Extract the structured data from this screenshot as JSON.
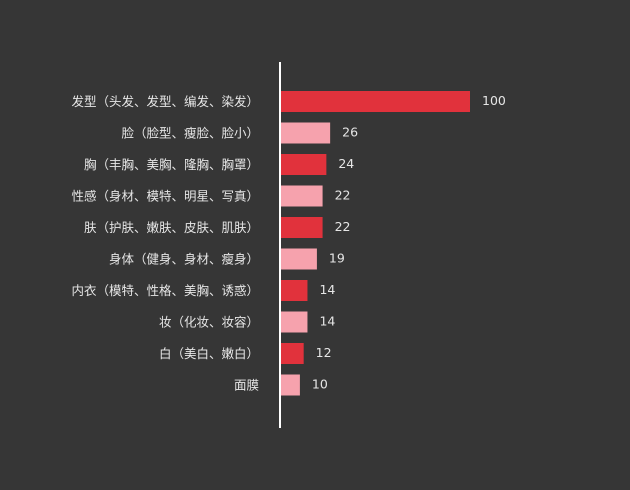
{
  "colors": {
    "background": "#363636",
    "text": "#e6e6e6",
    "axis": "#ffffff",
    "bar_dark": "#e1323c",
    "bar_light": "#f6a2ad"
  },
  "chart_data": {
    "type": "bar",
    "orientation": "horizontal",
    "title": "",
    "xlabel": "",
    "ylabel": "",
    "xlim": [
      0,
      100
    ],
    "grid": false,
    "legend": "none",
    "categories": [
      "发型（头发、发型、编发、染发）",
      "脸（脸型、瘦脸、脸小）",
      "胸（丰胸、美胸、隆胸、胸罩）",
      "性感（身材、模特、明星、写真）",
      "肤（护肤、嫩肤、皮肤、肌肤）",
      "身体（健身、身材、瘦身）",
      "内衣（模特、性格、美胸、诱惑）",
      "妆（化妆、妆容）",
      "白（美白、嫩白）",
      "面膜"
    ],
    "values": [
      100,
      26,
      24,
      22,
      22,
      19,
      14,
      14,
      12,
      10
    ],
    "value_labels": [
      "100",
      "26",
      "24",
      "22",
      "22",
      "19",
      "14",
      "14",
      "12",
      "10"
    ]
  }
}
